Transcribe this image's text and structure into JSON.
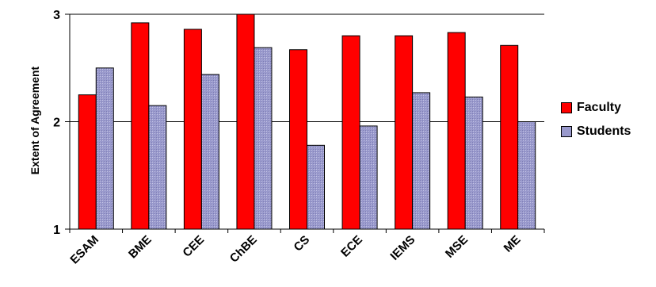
{
  "chart_data": {
    "type": "bar",
    "title": "",
    "xlabel": "",
    "ylabel": "Extent of Agreement",
    "ylim": [
      1,
      3
    ],
    "yticks": [
      "1",
      "2",
      "3"
    ],
    "grid": true,
    "legend_position": "right",
    "categories": [
      "ESAM",
      "BME",
      "CEE",
      "ChBE",
      "CS",
      "ECE",
      "IEMS",
      "MSE",
      "ME"
    ],
    "series": [
      {
        "name": "Faculty",
        "color": "#ff0000",
        "values": [
          2.25,
          2.92,
          2.86,
          3.0,
          2.67,
          2.8,
          2.8,
          2.83,
          2.71
        ]
      },
      {
        "name": "Students",
        "color": "#9999cc",
        "values": [
          2.5,
          2.15,
          2.44,
          2.69,
          1.78,
          1.96,
          2.27,
          2.23,
          2.0
        ]
      }
    ]
  }
}
